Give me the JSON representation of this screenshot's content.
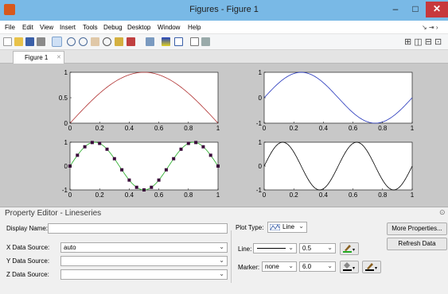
{
  "window": {
    "title": "Figures - Figure 1",
    "min_label": "–",
    "max_label": "□",
    "close_label": "✕"
  },
  "menu": [
    "File",
    "Edit",
    "View",
    "Insert",
    "Tools",
    "Debug",
    "Desktop",
    "Window",
    "Help"
  ],
  "menu_arrows": "↘ ⇥ ›",
  "toolbar": {
    "icons": [
      "new-icon",
      "open-icon",
      "save-icon",
      "print-icon",
      "pointer-icon",
      "zoom-in-icon",
      "zoom-out-icon",
      "pan-icon",
      "rotate-icon",
      "data-cursor-icon",
      "brush-icon",
      "link-icon",
      "colorbar-icon",
      "legend-icon",
      "hide-tools-icon",
      "show-tools-icon"
    ],
    "layout_icons": "⊞ ◫ ⊟ ⊡"
  },
  "tab": {
    "label": "Figure 1",
    "close": "✕"
  },
  "plots": {
    "p1": {
      "yticks": [
        "1",
        "0.5",
        "0"
      ],
      "xticks": [
        "0",
        "0.2",
        "0.4",
        "0.6",
        "0.8",
        "1"
      ],
      "color": "#b03030"
    },
    "p2": {
      "yticks": [
        "1",
        "0",
        "-1"
      ],
      "xticks": [
        "0",
        "0.2",
        "0.4",
        "0.6",
        "0.8",
        "1"
      ],
      "color": "#2233bb"
    },
    "p3": {
      "yticks": [
        "1",
        "0",
        "-1"
      ],
      "xticks": [
        "0",
        "0.2",
        "0.4",
        "0.6",
        "0.8",
        "1"
      ],
      "color": "#22aa22",
      "marker_color": "#3a0a3a"
    },
    "p4": {
      "yticks": [
        "1",
        "0",
        "-1"
      ],
      "xticks": [
        "0",
        "0.2",
        "0.4",
        "0.6",
        "0.8",
        "1"
      ],
      "color": "#000000"
    }
  },
  "chart_data": [
    {
      "type": "line",
      "series": [
        {
          "function": "sin(pi*x)",
          "x_range": [
            0,
            1
          ]
        }
      ],
      "xlim": [
        0,
        1
      ],
      "ylim": [
        0,
        1
      ],
      "color": "#b03030"
    },
    {
      "type": "line",
      "series": [
        {
          "function": "sin(2*pi*x)",
          "x_range": [
            0,
            1
          ]
        }
      ],
      "xlim": [
        0,
        1
      ],
      "ylim": [
        -1,
        1
      ],
      "color": "#2233bb"
    },
    {
      "type": "line",
      "series": [
        {
          "function": "sin(3*pi*x)",
          "x_range": [
            0,
            1
          ],
          "markers": "square"
        }
      ],
      "xlim": [
        0,
        1
      ],
      "ylim": [
        -1,
        1
      ],
      "color": "#22aa22"
    },
    {
      "type": "line",
      "series": [
        {
          "function": "sin(4*pi*x)",
          "x_range": [
            0,
            1
          ]
        }
      ],
      "xlim": [
        0,
        1
      ],
      "ylim": [
        -1,
        1
      ],
      "color": "#000000"
    }
  ],
  "property_editor": {
    "title": "Property Editor - Lineseries",
    "display_name_label": "Display Name:",
    "display_name_value": "",
    "x_source_label": "X Data Source:",
    "x_source_value": "auto",
    "y_source_label": "Y Data Source:",
    "y_source_value": "",
    "z_source_label": "Z Data Source:",
    "z_source_value": "",
    "plot_type_label": "Plot Type:",
    "plot_type_value": "Line",
    "line_label": "Line:",
    "line_width": "0.5",
    "marker_label": "Marker:",
    "marker_value": "none",
    "marker_size": "6.0",
    "more_properties": "More Properties...",
    "refresh_data": "Refresh Data",
    "dropdown_arrow": "⌄"
  }
}
